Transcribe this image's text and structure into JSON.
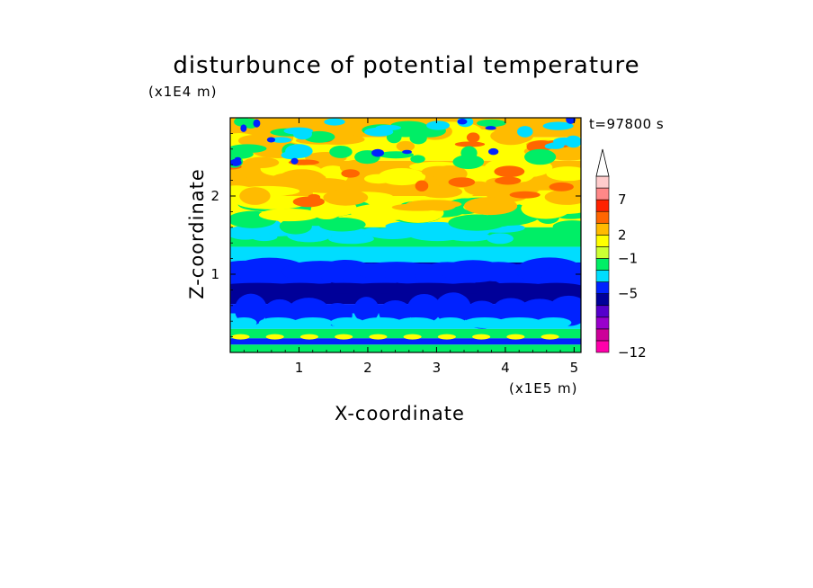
{
  "title": "disturbunce of potential temperature",
  "time_label": "t=97800 s",
  "chart_data": {
    "type": "heatmap",
    "title": "disturbunce of potential temperature",
    "xlabel": "X-coordinate",
    "ylabel": "Z-coordinate",
    "x_multiplier": "(x1E5 m)",
    "z_multiplier": "(x1E4 m)",
    "x_ticks": [
      "1",
      "2",
      "3",
      "4",
      "5"
    ],
    "z_ticks": [
      "1",
      "2"
    ],
    "xlim": [
      0,
      5.1
    ],
    "zlim": [
      0,
      3.0
    ],
    "colorbar": {
      "labels": [
        "7",
        "2",
        "−1",
        "−5",
        "−12"
      ],
      "label_values": [
        7,
        2,
        -1,
        -5,
        -12
      ],
      "colors": [
        "#ff00aa",
        "#cc0099",
        "#9900cc",
        "#5500cc",
        "#000099",
        "#0022ff",
        "#00ddff",
        "#00ee66",
        "#ccff33",
        "#ffff00",
        "#ffbb00",
        "#ff6600",
        "#ff2200",
        "#ff8888",
        "#ffcccc"
      ],
      "overflow_triangle": true
    },
    "z_profile": [
      {
        "z": 0.2,
        "level": "blue"
      },
      {
        "z": 0.55,
        "level": "cyan/green"
      },
      {
        "z": 0.95,
        "level": "dark blue"
      },
      {
        "z": 1.3,
        "level": "cyan/green"
      },
      {
        "z": 1.8,
        "level": "yellow/orange"
      },
      {
        "z": 2.5,
        "level": "yellow/orange"
      },
      {
        "z": 2.9,
        "level": "orange/cyan"
      }
    ]
  },
  "colors": {
    "dark_blue": "#000099",
    "blue": "#0022ff",
    "cyan": "#00ddff",
    "green": "#00ee66",
    "yellow": "#ffff00",
    "orange": "#ffbb00",
    "red_orange": "#ff6600"
  }
}
